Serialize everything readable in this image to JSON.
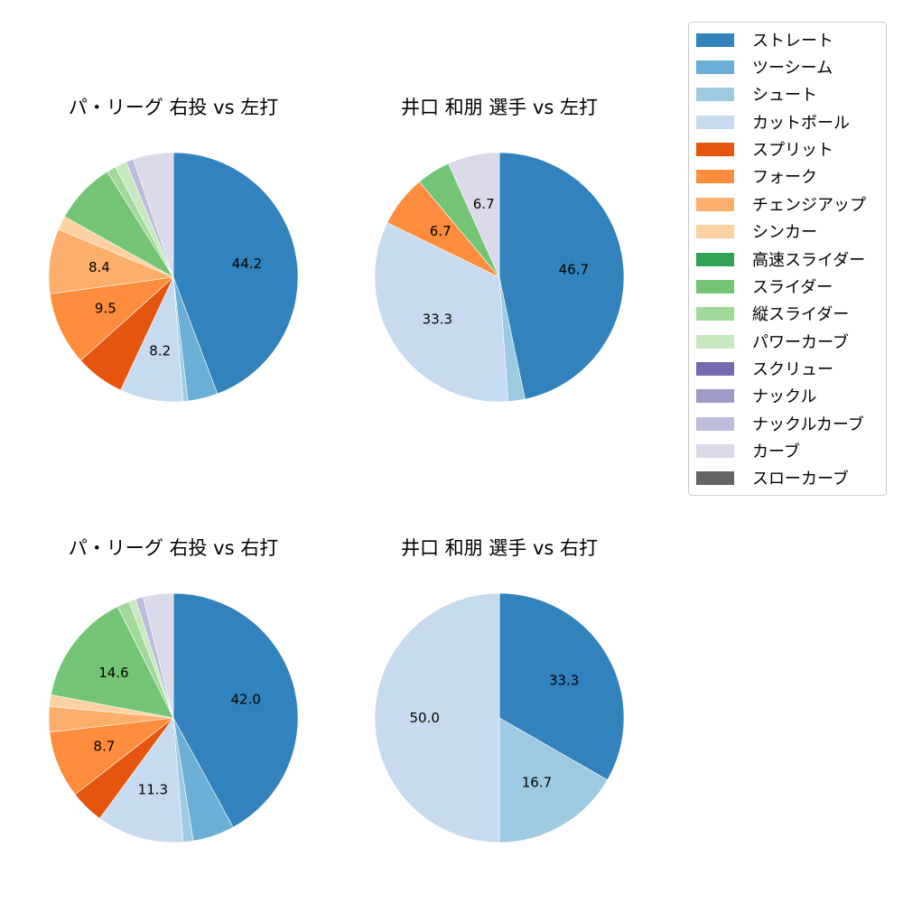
{
  "legend": {
    "items": [
      {
        "label": "ストレート",
        "color": "#3182bd"
      },
      {
        "label": "ツーシーム",
        "color": "#6baed6"
      },
      {
        "label": "シュート",
        "color": "#9ecae1"
      },
      {
        "label": "カットボール",
        "color": "#c6dbef"
      },
      {
        "label": "スプリット",
        "color": "#e6550d"
      },
      {
        "label": "フォーク",
        "color": "#fd8d3c"
      },
      {
        "label": "チェンジアップ",
        "color": "#fdae6b"
      },
      {
        "label": "シンカー",
        "color": "#fdd0a2"
      },
      {
        "label": "高速スライダー",
        "color": "#31a354"
      },
      {
        "label": "スライダー",
        "color": "#74c476"
      },
      {
        "label": "縦スライダー",
        "color": "#a1d99b"
      },
      {
        "label": "パワーカーブ",
        "color": "#c7e9c0"
      },
      {
        "label": "スクリュー",
        "color": "#756bb1"
      },
      {
        "label": "ナックル",
        "color": "#9e9ac8"
      },
      {
        "label": "ナックルカーブ",
        "color": "#bcbddc"
      },
      {
        "label": "カーブ",
        "color": "#dadaeb"
      },
      {
        "label": "スローカーブ",
        "color": "#636363"
      }
    ]
  },
  "chart_data": [
    {
      "type": "pie",
      "title": "パ・リーグ 右投 vs 左打",
      "categories": [
        "ストレート",
        "ツーシーム",
        "シュート",
        "カットボール",
        "スプリット",
        "フォーク",
        "チェンジアップ",
        "シンカー",
        "スライダー",
        "縦スライダー",
        "パワーカーブ",
        "ナックルカーブ",
        "カーブ"
      ],
      "values": [
        44.2,
        3.9,
        0.6,
        8.2,
        6.4,
        9.5,
        8.4,
        1.8,
        8.0,
        1.2,
        1.5,
        1.0,
        5.2
      ],
      "labels_shown": [
        "44.2",
        "",
        "",
        "8.2",
        "",
        "9.5",
        "8.4",
        "",
        "",
        "",
        "",
        "",
        ""
      ],
      "startangle": 90,
      "direction": "clockwise"
    },
    {
      "type": "pie",
      "title": "井口 和朋 選手 vs 左打",
      "categories": [
        "ストレート",
        "シュート",
        "カットボール",
        "フォーク",
        "スライダー",
        "カーブ"
      ],
      "values": [
        46.7,
        2.2,
        33.3,
        6.7,
        4.4,
        6.7
      ],
      "labels_shown": [
        "46.7",
        "",
        "33.3",
        "6.7",
        "",
        "6.7"
      ],
      "startangle": 90,
      "direction": "clockwise"
    },
    {
      "type": "pie",
      "title": "パ・リーグ 右投 vs 右打",
      "categories": [
        "ストレート",
        "ツーシーム",
        "シュート",
        "カットボール",
        "スプリット",
        "フォーク",
        "チェンジアップ",
        "シンカー",
        "スライダー",
        "縦スライダー",
        "パワーカーブ",
        "ナックルカーブ",
        "カーブ"
      ],
      "values": [
        42.0,
        5.4,
        1.3,
        11.3,
        4.4,
        8.7,
        3.3,
        1.5,
        14.6,
        1.6,
        0.9,
        1.0,
        3.9
      ],
      "labels_shown": [
        "42.0",
        "",
        "",
        "11.3",
        "",
        "8.7",
        "",
        "",
        "14.6",
        "",
        "",
        "",
        ""
      ],
      "startangle": 90,
      "direction": "clockwise"
    },
    {
      "type": "pie",
      "title": "井口 和朋 選手 vs 右打",
      "categories": [
        "ストレート",
        "シュート",
        "カットボール"
      ],
      "values": [
        33.3,
        16.7,
        50.0
      ],
      "labels_shown": [
        "33.3",
        "16.7",
        "50.0"
      ],
      "startangle": 90,
      "direction": "clockwise"
    }
  ]
}
